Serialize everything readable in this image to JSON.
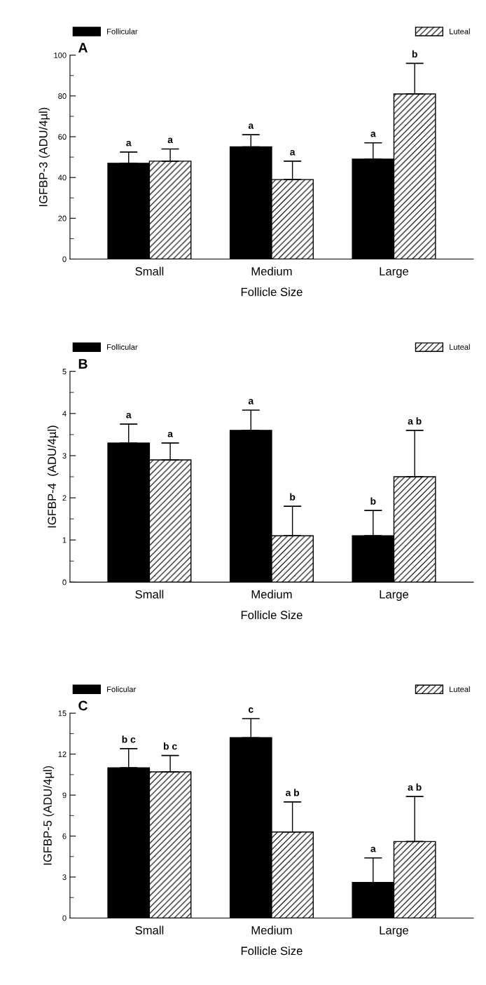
{
  "chart_data": [
    {
      "type": "bar",
      "xlabel": "Follicle Size",
      "ylabel": "IGFBP-3 (ADU/4µl)",
      "categories": [
        "Small",
        "Medium",
        "Large"
      ],
      "ylim": [
        0,
        100
      ],
      "yticks": [
        0,
        20,
        40,
        60,
        80,
        100
      ],
      "legend": "top",
      "series": [
        {
          "name": "Follicular",
          "color": "#000000",
          "values": [
            47,
            55,
            49
          ],
          "errors": [
            [
              47,
              52.5
            ],
            [
              55,
              61
            ],
            [
              49,
              57
            ]
          ]
        },
        {
          "name": "Luteal",
          "color": "#000000",
          "values": [
            48,
            39,
            81
          ],
          "errors": [
            [
              48,
              54
            ],
            [
              39,
              48
            ],
            [
              81,
              96
            ]
          ]
        }
      ],
      "annotations": [
        "A",
        "a",
        "a",
        "a",
        "a",
        "a",
        "b"
      ]
    },
    {
      "type": "bar",
      "xlabel": "Follicle Size",
      "ylabel": "IGFBP-4  (ADU/4µl)",
      "categories": [
        "Small",
        "Medium",
        "Large"
      ],
      "ylim": [
        0,
        5
      ],
      "yticks": [
        0,
        1,
        2,
        3,
        4,
        5
      ],
      "legend": "top",
      "series": [
        {
          "name": "Follicular",
          "color": "#000000",
          "values": [
            3.3,
            3.6,
            1.1
          ],
          "errors": [
            [
              3.3,
              3.75
            ],
            [
              3.6,
              4.08
            ],
            [
              1.1,
              1.7
            ]
          ]
        },
        {
          "name": "Luteal",
          "color": "#000000",
          "values": [
            2.9,
            1.1,
            2.5
          ],
          "errors": [
            [
              2.9,
              3.3
            ],
            [
              1.1,
              1.8
            ],
            [
              2.5,
              3.6
            ]
          ]
        }
      ],
      "annotations": [
        "B",
        "a",
        "a",
        "b",
        "a",
        "b",
        "a b"
      ]
    },
    {
      "type": "bar",
      "xlabel": "Follicle Size",
      "ylabel": "IGFBP-5 (ADU/4µl)",
      "categories": [
        "Small",
        "Medium",
        "Large"
      ],
      "ylim": [
        0,
        15
      ],
      "yticks": [
        0,
        3,
        6,
        9,
        12,
        15
      ],
      "legend": "top",
      "series": [
        {
          "name": "Folicular",
          "color": "#000000",
          "values": [
            11.0,
            13.2,
            2.6
          ],
          "errors": [
            [
              11.0,
              12.4
            ],
            [
              13.2,
              14.6
            ],
            [
              2.6,
              4.4
            ]
          ]
        },
        {
          "name": "Luteal",
          "color": "#000000",
          "values": [
            10.7,
            6.3,
            5.6
          ],
          "errors": [
            [
              10.7,
              11.9
            ],
            [
              6.3,
              8.5
            ],
            [
              5.6,
              8.9
            ]
          ]
        }
      ],
      "annotations": [
        "C",
        "b c",
        "c",
        "a",
        "b c",
        "a b",
        "a b"
      ]
    }
  ]
}
